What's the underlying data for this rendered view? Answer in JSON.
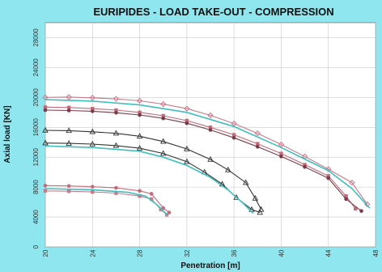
{
  "chart_data": {
    "type": "line",
    "title": "EURIPIDES - LOAD TAKE-OUT - COMPRESSION",
    "xlabel": "Penetration [m]",
    "ylabel": "Axial load [KN]",
    "xlim": [
      20,
      48
    ],
    "ylim": [
      0,
      30000
    ],
    "x_ticks": [
      20,
      24,
      28,
      32,
      36,
      40,
      44,
      48
    ],
    "y_ticks": [
      0,
      4000,
      8000,
      12000,
      16000,
      20000,
      24000,
      28000
    ],
    "grid": true,
    "colors": {
      "measured": "#c26b7a",
      "calculated": "#3ebfbf",
      "measured_dark": "#7a3a48",
      "triangle": "#333333",
      "diamond": "#c97a8a"
    },
    "series": [
      {
        "marker": "diamond",
        "color": "#c97a8a",
        "kind": "measured",
        "points": [
          [
            20,
            20000
          ],
          [
            22,
            20050
          ],
          [
            24,
            19950
          ],
          [
            26,
            19800
          ],
          [
            28,
            19550
          ],
          [
            30,
            19100
          ],
          [
            32,
            18500
          ],
          [
            34,
            17600
          ],
          [
            36,
            16500
          ],
          [
            38,
            15200
          ],
          [
            40,
            13700
          ],
          [
            42,
            12100
          ],
          [
            44,
            10400
          ],
          [
            46,
            8600
          ],
          [
            47.3,
            5700
          ]
        ]
      },
      {
        "marker": "square",
        "color": "#c26b7a",
        "kind": "measured",
        "points": [
          [
            20,
            18700
          ],
          [
            22,
            18650
          ],
          [
            24,
            18500
          ],
          [
            26,
            18300
          ],
          [
            28,
            18000
          ],
          [
            30,
            17550
          ],
          [
            32,
            16900
          ],
          [
            34,
            16000
          ],
          [
            36,
            15000
          ],
          [
            38,
            13800
          ],
          [
            40,
            12500
          ],
          [
            42,
            11000
          ],
          [
            44,
            9500
          ],
          [
            45.5,
            6800
          ],
          [
            46.3,
            5100
          ]
        ]
      },
      {
        "marker": "circle",
        "color": "#7a3a48",
        "kind": "measured",
        "points": [
          [
            20,
            18300
          ],
          [
            22,
            18250
          ],
          [
            24,
            18150
          ],
          [
            26,
            17950
          ],
          [
            28,
            17650
          ],
          [
            30,
            17200
          ],
          [
            32,
            16550
          ],
          [
            34,
            15650
          ],
          [
            36,
            14600
          ],
          [
            38,
            13400
          ],
          [
            40,
            12100
          ],
          [
            42,
            10700
          ],
          [
            44,
            9200
          ],
          [
            45.5,
            6400
          ],
          [
            46.8,
            4800
          ]
        ]
      },
      {
        "marker": "line",
        "color": "#3ebfbf",
        "kind": "calculated",
        "points": [
          [
            20,
            19700
          ],
          [
            24,
            19500
          ],
          [
            28,
            19000
          ],
          [
            32,
            18000
          ],
          [
            36,
            16100
          ],
          [
            40,
            13300
          ],
          [
            44,
            10200
          ],
          [
            46,
            7800
          ],
          [
            47.5,
            5200
          ]
        ]
      },
      {
        "marker": "triangle",
        "color": "#333333",
        "kind": "measured",
        "points": [
          [
            20,
            15600
          ],
          [
            22,
            15550
          ],
          [
            24,
            15400
          ],
          [
            26,
            15200
          ],
          [
            28,
            14800
          ],
          [
            30,
            14100
          ],
          [
            32,
            13100
          ],
          [
            34,
            11700
          ],
          [
            35.5,
            10300
          ],
          [
            37,
            8600
          ],
          [
            37.8,
            6500
          ],
          [
            38.3,
            5000
          ]
        ]
      },
      {
        "marker": "triangle",
        "color": "#333333",
        "kind": "measured",
        "points": [
          [
            20,
            13900
          ],
          [
            22,
            13850
          ],
          [
            24,
            13750
          ],
          [
            26,
            13550
          ],
          [
            28,
            13200
          ],
          [
            30,
            12500
          ],
          [
            32,
            11400
          ],
          [
            33.5,
            10000
          ],
          [
            35,
            8400
          ],
          [
            36.2,
            6600
          ],
          [
            37.5,
            5000
          ],
          [
            38.2,
            4600
          ]
        ]
      },
      {
        "marker": "line",
        "color": "#3ebfbf",
        "kind": "calculated",
        "points": [
          [
            20,
            13500
          ],
          [
            24,
            13300
          ],
          [
            28,
            12800
          ],
          [
            30,
            12000
          ],
          [
            32,
            10900
          ],
          [
            34,
            9300
          ],
          [
            35.5,
            7600
          ],
          [
            36.8,
            5800
          ],
          [
            37.6,
            4500
          ]
        ]
      },
      {
        "marker": "circle",
        "color": "#c26b7a",
        "kind": "measured",
        "points": [
          [
            20,
            8200
          ],
          [
            22,
            8150
          ],
          [
            24,
            8050
          ],
          [
            26,
            7900
          ],
          [
            28,
            7500
          ],
          [
            29,
            7100
          ],
          [
            30,
            5200
          ],
          [
            30.5,
            4600
          ]
        ]
      },
      {
        "marker": "square",
        "color": "#c97a8a",
        "kind": "measured",
        "points": [
          [
            20,
            7500
          ],
          [
            22,
            7450
          ],
          [
            24,
            7350
          ],
          [
            26,
            7200
          ],
          [
            28,
            6800
          ],
          [
            29,
            6400
          ],
          [
            29.8,
            5000
          ],
          [
            30.3,
            4300
          ]
        ]
      },
      {
        "marker": "line",
        "color": "#3ebfbf",
        "kind": "calculated",
        "points": [
          [
            20,
            7800
          ],
          [
            24,
            7650
          ],
          [
            27,
            7300
          ],
          [
            28.5,
            6800
          ],
          [
            29.5,
            5600
          ],
          [
            30.4,
            4200
          ]
        ]
      }
    ]
  }
}
